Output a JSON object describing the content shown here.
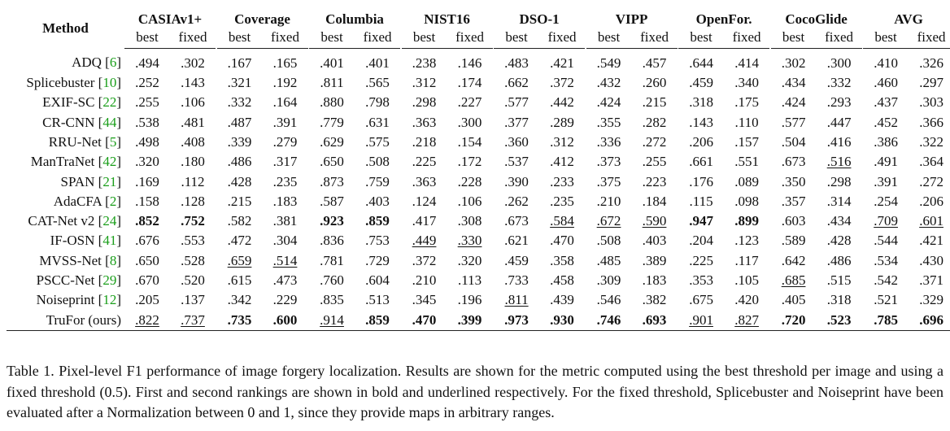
{
  "table": {
    "method_header": "Method",
    "datasets": [
      "CASIAv1+",
      "Coverage",
      "Columbia",
      "NIST16",
      "DSO-1",
      "VIPP",
      "OpenFor.",
      "CocoGlide",
      "AVG"
    ],
    "sub_headers": [
      "best",
      "fixed"
    ],
    "rows": [
      {
        "name": "ADQ",
        "ref": "6",
        "vals": [
          ".494",
          ".302",
          ".167",
          ".165",
          ".401",
          ".401",
          ".238",
          ".146",
          ".483",
          ".421",
          ".549",
          ".457",
          ".644",
          ".414",
          ".302",
          ".300",
          ".410",
          ".326"
        ],
        "bold": [],
        "under": []
      },
      {
        "name": "Splicebuster",
        "ref": "10",
        "vals": [
          ".252",
          ".143",
          ".321",
          ".192",
          ".811",
          ".565",
          ".312",
          ".174",
          ".662",
          ".372",
          ".432",
          ".260",
          ".459",
          ".340",
          ".434",
          ".332",
          ".460",
          ".297"
        ],
        "bold": [],
        "under": []
      },
      {
        "name": "EXIF-SC",
        "ref": "22",
        "vals": [
          ".255",
          ".106",
          ".332",
          ".164",
          ".880",
          ".798",
          ".298",
          ".227",
          ".577",
          ".442",
          ".424",
          ".215",
          ".318",
          ".175",
          ".424",
          ".293",
          ".437",
          ".303"
        ],
        "bold": [],
        "under": []
      },
      {
        "name": "CR-CNN",
        "ref": "44",
        "vals": [
          ".538",
          ".481",
          ".487",
          ".391",
          ".779",
          ".631",
          ".363",
          ".300",
          ".377",
          ".289",
          ".355",
          ".282",
          ".143",
          ".110",
          ".577",
          ".447",
          ".452",
          ".366"
        ],
        "bold": [],
        "under": []
      },
      {
        "name": "RRU-Net",
        "ref": "5",
        "vals": [
          ".498",
          ".408",
          ".339",
          ".279",
          ".629",
          ".575",
          ".218",
          ".154",
          ".360",
          ".312",
          ".336",
          ".272",
          ".206",
          ".157",
          ".504",
          ".416",
          ".386",
          ".322"
        ],
        "bold": [],
        "under": []
      },
      {
        "name": "ManTraNet",
        "ref": "42",
        "vals": [
          ".320",
          ".180",
          ".486",
          ".317",
          ".650",
          ".508",
          ".225",
          ".172",
          ".537",
          ".412",
          ".373",
          ".255",
          ".661",
          ".551",
          ".673",
          ".516",
          ".491",
          ".364"
        ],
        "bold": [],
        "under": [
          15
        ]
      },
      {
        "name": "SPAN",
        "ref": "21",
        "vals": [
          ".169",
          ".112",
          ".428",
          ".235",
          ".873",
          ".759",
          ".363",
          ".228",
          ".390",
          ".233",
          ".375",
          ".223",
          ".176",
          ".089",
          ".350",
          ".298",
          ".391",
          ".272"
        ],
        "bold": [],
        "under": []
      },
      {
        "name": "AdaCFA",
        "ref": "2",
        "vals": [
          ".158",
          ".128",
          ".215",
          ".183",
          ".587",
          ".403",
          ".124",
          ".106",
          ".262",
          ".235",
          ".210",
          ".184",
          ".115",
          ".098",
          ".357",
          ".314",
          ".254",
          ".206"
        ],
        "bold": [],
        "under": []
      },
      {
        "name": "CAT-Net v2",
        "ref": "24",
        "vals": [
          ".852",
          ".752",
          ".582",
          ".381",
          ".923",
          ".859",
          ".417",
          ".308",
          ".673",
          ".584",
          ".672",
          ".590",
          ".947",
          ".899",
          ".603",
          ".434",
          ".709",
          ".601"
        ],
        "bold": [
          0,
          1,
          4,
          5,
          12,
          13
        ],
        "under": [
          9,
          10,
          11,
          16,
          17
        ]
      },
      {
        "name": "IF-OSN",
        "ref": "41",
        "vals": [
          ".676",
          ".553",
          ".472",
          ".304",
          ".836",
          ".753",
          ".449",
          ".330",
          ".621",
          ".470",
          ".508",
          ".403",
          ".204",
          ".123",
          ".589",
          ".428",
          ".544",
          ".421"
        ],
        "bold": [],
        "under": [
          6,
          7
        ]
      },
      {
        "name": "MVSS-Net",
        "ref": "8",
        "vals": [
          ".650",
          ".528",
          ".659",
          ".514",
          ".781",
          ".729",
          ".372",
          ".320",
          ".459",
          ".358",
          ".485",
          ".389",
          ".225",
          ".117",
          ".642",
          ".486",
          ".534",
          ".430"
        ],
        "bold": [],
        "under": [
          2,
          3
        ]
      },
      {
        "name": "PSCC-Net",
        "ref": "29",
        "vals": [
          ".670",
          ".520",
          ".615",
          ".473",
          ".760",
          ".604",
          ".210",
          ".113",
          ".733",
          ".458",
          ".309",
          ".183",
          ".353",
          ".105",
          ".685",
          ".515",
          ".542",
          ".371"
        ],
        "bold": [],
        "under": [
          14
        ]
      },
      {
        "name": "Noiseprint",
        "ref": "12",
        "vals": [
          ".205",
          ".137",
          ".342",
          ".229",
          ".835",
          ".513",
          ".345",
          ".196",
          ".811",
          ".439",
          ".546",
          ".382",
          ".675",
          ".420",
          ".405",
          ".318",
          ".521",
          ".329"
        ],
        "bold": [],
        "under": [
          8
        ]
      },
      {
        "name": "TruFor (ours)",
        "ref": "",
        "vals": [
          ".822",
          ".737",
          ".735",
          ".600",
          ".914",
          ".859",
          ".470",
          ".399",
          ".973",
          ".930",
          ".746",
          ".693",
          ".901",
          ".827",
          ".720",
          ".523",
          ".785",
          ".696"
        ],
        "bold": [
          2,
          3,
          5,
          6,
          7,
          8,
          9,
          10,
          11,
          14,
          15,
          16,
          17
        ],
        "under": [
          0,
          1,
          4,
          12,
          13
        ]
      }
    ]
  },
  "caption": "Table 1. Pixel-level F1 performance of image forgery localization. Results are shown for the metric computed using the best threshold per image and using a fixed threshold (0.5). First and second rankings are shown in bold and underlined respectively. For the fixed threshold, Splicebuster and Noiseprint have been evaluated after a Normalization between 0 and 1, since they provide maps in arbitrary ranges.",
  "colors": {
    "ref_link": "#1a9e1a",
    "text": "#111111"
  }
}
